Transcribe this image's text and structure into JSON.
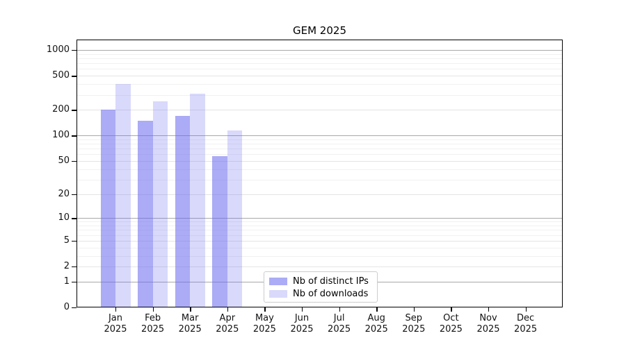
{
  "title": "GEM 2025",
  "colors": {
    "bar_distinct_ips": "rgba(102,102,238,0.55)",
    "bar_downloads": "rgba(102,102,238,0.25)",
    "bar_base": "#6666ee",
    "grid_major": "#e4e4e4",
    "grid_minor": "#f1f1f1",
    "grid_emphasis": "#a8a8a8",
    "axis": "#000000",
    "text": "#111111"
  },
  "axes": {
    "y_tick_labels": [
      "0",
      "1",
      "2",
      "5",
      "10",
      "20",
      "50",
      "100",
      "200",
      "500",
      "1000"
    ],
    "y_tick_values": [
      0,
      1,
      2,
      5,
      10,
      20,
      50,
      100,
      200,
      500,
      1000
    ],
    "y_emphasis_values": [
      1,
      10,
      100,
      1000
    ],
    "y_minor_values": [
      3,
      4,
      6,
      7,
      8,
      9,
      30,
      40,
      60,
      70,
      80,
      90,
      300,
      400,
      600,
      700,
      800,
      900
    ],
    "x_months": [
      "Jan",
      "Feb",
      "Mar",
      "Apr",
      "May",
      "Jun",
      "Jul",
      "Aug",
      "Sep",
      "Oct",
      "Nov",
      "Dec"
    ],
    "x_year": "2025"
  },
  "legend": {
    "items": [
      "Nb of distinct IPs",
      "Nb of downloads"
    ]
  },
  "chart_data": {
    "type": "bar",
    "title": "GEM 2025",
    "categories": [
      "Jan 2025",
      "Feb 2025",
      "Mar 2025",
      "Apr 2025",
      "May 2025",
      "Jun 2025",
      "Jul 2025",
      "Aug 2025",
      "Sep 2025",
      "Oct 2025",
      "Nov 2025",
      "Dec 2025"
    ],
    "series": [
      {
        "name": "Nb of distinct IPs",
        "values": [
          200,
          150,
          170,
          57,
          0,
          0,
          0,
          0,
          0,
          0,
          0,
          0
        ]
      },
      {
        "name": "Nb of downloads",
        "values": [
          400,
          250,
          310,
          115,
          0,
          0,
          0,
          0,
          0,
          0,
          0,
          0
        ]
      }
    ],
    "yscale": "log1p",
    "y_ticks": [
      0,
      1,
      2,
      5,
      10,
      20,
      50,
      100,
      200,
      500,
      1000
    ],
    "ylim": [
      0,
      1323
    ],
    "grid": true,
    "legend_position": "lower center"
  }
}
